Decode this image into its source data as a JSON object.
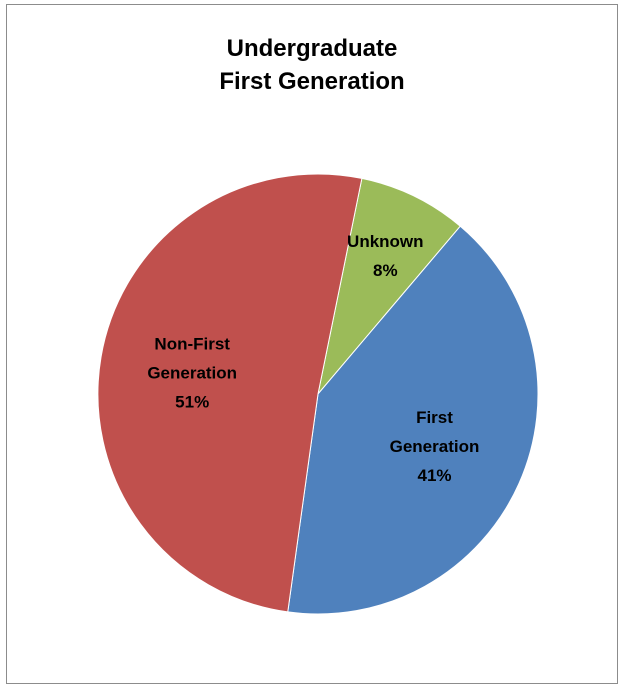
{
  "chart_data": {
    "type": "pie",
    "title": [
      "Undergraduate",
      "First Generation"
    ],
    "start_angle_deg": 11.5,
    "slices": [
      {
        "name": "Unknown",
        "label_lines": [
          "Unknown",
          "8%"
        ],
        "value": 8,
        "color": "#9bbb59"
      },
      {
        "name": "First Generation",
        "label_lines": [
          "First",
          "Generation",
          "41%"
        ],
        "value": 41,
        "color": "#4f81bd"
      },
      {
        "name": "Non-First Generation",
        "label_lines": [
          "Non-First",
          "Generation",
          "51%"
        ],
        "value": 51,
        "color": "#c0504d"
      }
    ],
    "legend": "none"
  }
}
